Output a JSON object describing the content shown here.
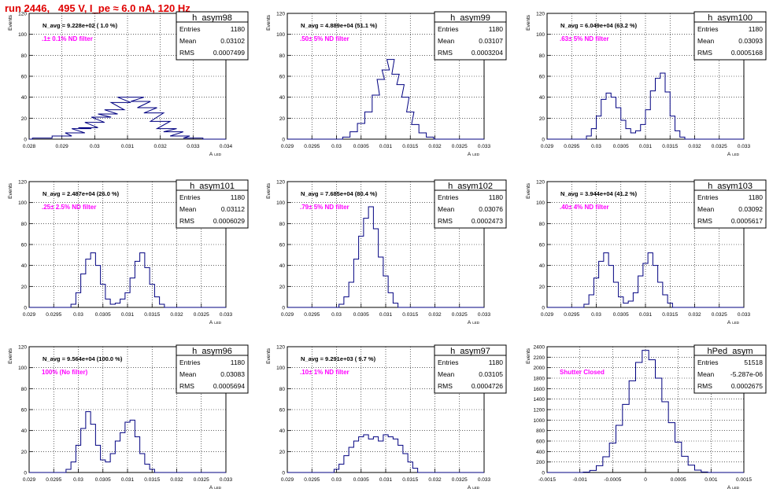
{
  "page": {
    "title": "run 2446,   495 V, I_pe ≈ 6.0 nA, 120 Hz",
    "colors": {
      "hist": "#000080",
      "annotation": "#ff00ff",
      "title": "#e00000",
      "grid": "#000000"
    }
  },
  "chart_data": [
    {
      "type": "histogram",
      "name": "h_asym98",
      "stats": {
        "entries": "1180",
        "mean": "0.03102",
        "rms": "0.0007499"
      },
      "nlabel": "N_avg = 9.228e+02 ( 1.0 %)",
      "filter": ".1± 0.1% ND filter",
      "ylabel": "Events",
      "xlabel": "A",
      "xsub": "LED",
      "xlim": [
        0.028,
        0.034
      ],
      "ylim": [
        0,
        120
      ],
      "xticks": [
        0.028,
        0.029,
        0.03,
        0.031,
        0.032,
        0.033,
        0.034
      ],
      "xticklabels": [
        "0.028",
        "0.029",
        "0.03",
        "0.031",
        "0.032",
        "0.033",
        "0.034"
      ],
      "yticks": [
        0,
        20,
        40,
        60,
        80,
        100,
        120
      ],
      "yticklabels": [
        "0",
        "20",
        "40",
        "60",
        "80",
        "100",
        "120"
      ],
      "bins": [
        [
          0.0284,
          1
        ],
        [
          0.029,
          3
        ],
        [
          0.0294,
          6
        ],
        [
          0.0296,
          10
        ],
        [
          0.0298,
          11
        ],
        [
          0.03,
          16
        ],
        [
          0.0302,
          21
        ],
        [
          0.0304,
          24
        ],
        [
          0.0306,
          28
        ],
        [
          0.0308,
          35
        ],
        [
          0.031,
          40
        ],
        [
          0.0312,
          40
        ],
        [
          0.0314,
          36
        ],
        [
          0.0316,
          30
        ],
        [
          0.0318,
          25
        ],
        [
          0.032,
          17
        ],
        [
          0.0322,
          10
        ],
        [
          0.0324,
          7
        ],
        [
          0.0326,
          3
        ],
        [
          0.033,
          1
        ]
      ]
    },
    {
      "type": "histogram",
      "name": "h_asym99",
      "stats": {
        "entries": "1180",
        "mean": "0.03107",
        "rms": "0.0003204"
      },
      "nlabel": "N_avg = 4.889e+04 (51.1 %)",
      "filter": ".50± 5% ND filter",
      "ylabel": "Events",
      "xlabel": "A",
      "xsub": "LED",
      "xlim": [
        0.029,
        0.033
      ],
      "ylim": [
        0,
        120
      ],
      "xticks": [
        0.029,
        0.0295,
        0.03,
        0.0305,
        0.031,
        0.0315,
        0.032,
        0.0325,
        0.033
      ],
      "xticklabels": [
        "0.029",
        "0.0295",
        "0.03",
        "0.0305",
        "0.031",
        "0.0315",
        "0.032",
        "0.0325",
        "0.033"
      ],
      "yticks": [
        0,
        20,
        40,
        60,
        80,
        100,
        120
      ],
      "yticklabels": [
        "0",
        "20",
        "40",
        "60",
        "80",
        "100",
        "120"
      ],
      "bins": [
        [
          0.0302,
          2
        ],
        [
          0.03035,
          7
        ],
        [
          0.0305,
          15
        ],
        [
          0.03065,
          26
        ],
        [
          0.0308,
          42
        ],
        [
          0.0309,
          57
        ],
        [
          0.031,
          66
        ],
        [
          0.0311,
          76
        ],
        [
          0.0312,
          62
        ],
        [
          0.0313,
          52
        ],
        [
          0.0314,
          40
        ],
        [
          0.0315,
          26
        ],
        [
          0.0316,
          14
        ],
        [
          0.03175,
          6
        ],
        [
          0.0319,
          2
        ]
      ]
    },
    {
      "type": "histogram",
      "name": "h_asym100",
      "stats": {
        "entries": "1180",
        "mean": "0.03093",
        "rms": "0.0005168"
      },
      "nlabel": "N_avg = 6.049e+04 (63.2 %)",
      "filter": ".63± 5% ND filter",
      "ylabel": "Events",
      "xlabel": "A",
      "xsub": "LED",
      "xlim": [
        0.029,
        0.033
      ],
      "ylim": [
        0,
        120
      ],
      "xticks": [
        0.029,
        0.0295,
        0.03,
        0.0305,
        0.031,
        0.0315,
        0.032,
        0.0325,
        0.033
      ],
      "xticklabels": [
        "0.029",
        "0.0295",
        "0.03",
        "0.0305",
        "0.031",
        "0.0315",
        "0.032",
        "0.0325",
        "0.033"
      ],
      "yticks": [
        0,
        20,
        40,
        60,
        80,
        100,
        120
      ],
      "yticklabels": [
        "0",
        "20",
        "40",
        "60",
        "80",
        "100",
        "120"
      ],
      "bins": [
        [
          0.02985,
          3
        ],
        [
          0.02995,
          10
        ],
        [
          0.03005,
          22
        ],
        [
          0.03015,
          38
        ],
        [
          0.03025,
          44
        ],
        [
          0.03035,
          40
        ],
        [
          0.03045,
          30
        ],
        [
          0.03055,
          18
        ],
        [
          0.03065,
          10
        ],
        [
          0.03075,
          6
        ],
        [
          0.03085,
          8
        ],
        [
          0.03095,
          14
        ],
        [
          0.03105,
          28
        ],
        [
          0.03115,
          46
        ],
        [
          0.03125,
          58
        ],
        [
          0.03135,
          63
        ],
        [
          0.03145,
          45
        ],
        [
          0.03155,
          22
        ],
        [
          0.03165,
          8
        ],
        [
          0.03175,
          2
        ]
      ]
    },
    {
      "type": "histogram",
      "name": "h_asym101",
      "stats": {
        "entries": "1180",
        "mean": "0.03112",
        "rms": "0.0006029"
      },
      "nlabel": "N_avg = 2.487e+04 (26.0 %)",
      "filter": ".25± 2.5% ND filter",
      "ylabel": "Events",
      "xlabel": "A",
      "xsub": "LED",
      "xlim": [
        0.029,
        0.033
      ],
      "ylim": [
        0,
        120
      ],
      "xticks": [
        0.029,
        0.0295,
        0.03,
        0.0305,
        0.031,
        0.0315,
        0.032,
        0.0325,
        0.033
      ],
      "xticklabels": [
        "0.029",
        "0.0295",
        "0.03",
        "0.0305",
        "0.031",
        "0.0315",
        "0.032",
        "0.0325",
        "0.033"
      ],
      "yticks": [
        0,
        20,
        40,
        60,
        80,
        100,
        120
      ],
      "yticklabels": [
        "0",
        "20",
        "40",
        "60",
        "80",
        "100",
        "120"
      ],
      "bins": [
        [
          0.0299,
          3
        ],
        [
          0.03,
          14
        ],
        [
          0.0301,
          32
        ],
        [
          0.0302,
          46
        ],
        [
          0.0303,
          52
        ],
        [
          0.0304,
          40
        ],
        [
          0.0305,
          22
        ],
        [
          0.0306,
          8
        ],
        [
          0.0307,
          3
        ],
        [
          0.0308,
          4
        ],
        [
          0.0309,
          8
        ],
        [
          0.031,
          14
        ],
        [
          0.0311,
          28
        ],
        [
          0.0312,
          44
        ],
        [
          0.0313,
          52
        ],
        [
          0.0314,
          38
        ],
        [
          0.0315,
          22
        ],
        [
          0.0316,
          10
        ],
        [
          0.0317,
          3
        ]
      ]
    },
    {
      "type": "histogram",
      "name": "h_asym102",
      "stats": {
        "entries": "1180",
        "mean": "0.03076",
        "rms": "0.0002473"
      },
      "nlabel": "N_avg = 7.685e+04 (80.4 %)",
      "filter": ".79± 5% ND filter",
      "ylabel": "Events",
      "xlabel": "A",
      "xsub": "LED",
      "xlim": [
        0.029,
        0.033
      ],
      "ylim": [
        0,
        120
      ],
      "xticks": [
        0.029,
        0.0295,
        0.03,
        0.0305,
        0.031,
        0.0315,
        0.032,
        0.0325,
        0.033
      ],
      "xticklabels": [
        "0.029",
        "0.0295",
        "0.03",
        "0.0305",
        "0.031",
        "0.0315",
        "0.032",
        "0.0325",
        "0.033"
      ],
      "yticks": [
        0,
        20,
        40,
        60,
        80,
        100,
        120
      ],
      "yticklabels": [
        "0",
        "20",
        "40",
        "60",
        "80",
        "100",
        "120"
      ],
      "bins": [
        [
          0.0301,
          3
        ],
        [
          0.0302,
          10
        ],
        [
          0.0303,
          24
        ],
        [
          0.0304,
          46
        ],
        [
          0.0305,
          68
        ],
        [
          0.0306,
          85
        ],
        [
          0.0307,
          96
        ],
        [
          0.0308,
          75
        ],
        [
          0.0309,
          48
        ],
        [
          0.031,
          30
        ],
        [
          0.0311,
          14
        ],
        [
          0.0312,
          4
        ]
      ]
    },
    {
      "type": "histogram",
      "name": "h_asym103",
      "stats": {
        "entries": "1180",
        "mean": "0.03092",
        "rms": "0.0005617"
      },
      "nlabel": "N_avg = 3.944e+04 (41.2 %)",
      "filter": ".40± 4% ND filter",
      "ylabel": "Events",
      "xlabel": "A",
      "xsub": "LED",
      "xlim": [
        0.029,
        0.033
      ],
      "ylim": [
        0,
        120
      ],
      "xticks": [
        0.029,
        0.0295,
        0.03,
        0.0305,
        0.031,
        0.0315,
        0.032,
        0.0325,
        0.033
      ],
      "xticklabels": [
        "0.029",
        "0.0295",
        "0.03",
        "0.0305",
        "0.031",
        "0.0315",
        "0.032",
        "0.0325",
        "0.033"
      ],
      "yticks": [
        0,
        20,
        40,
        60,
        80,
        100,
        120
      ],
      "yticklabels": [
        "0",
        "20",
        "40",
        "60",
        "80",
        "100",
        "120"
      ],
      "bins": [
        [
          0.0298,
          3
        ],
        [
          0.0299,
          12
        ],
        [
          0.03,
          28
        ],
        [
          0.0301,
          44
        ],
        [
          0.0302,
          52
        ],
        [
          0.0303,
          40
        ],
        [
          0.0304,
          24
        ],
        [
          0.0305,
          10
        ],
        [
          0.0306,
          4
        ],
        [
          0.0307,
          6
        ],
        [
          0.0308,
          14
        ],
        [
          0.0309,
          30
        ],
        [
          0.031,
          42
        ],
        [
          0.0311,
          52
        ],
        [
          0.0312,
          40
        ],
        [
          0.0313,
          24
        ],
        [
          0.0314,
          12
        ],
        [
          0.0315,
          4
        ]
      ]
    },
    {
      "type": "histogram",
      "name": "h_asym96",
      "stats": {
        "entries": "1180",
        "mean": "0.03083",
        "rms": "0.0005694"
      },
      "nlabel": "N_avg = 9.564e+04 (100.0 %)",
      "filter": "100% (No filter)",
      "ylabel": "Events",
      "xlabel": "A",
      "xsub": "LED",
      "xlim": [
        0.029,
        0.033
      ],
      "ylim": [
        0,
        120
      ],
      "xticks": [
        0.029,
        0.0295,
        0.03,
        0.0305,
        0.031,
        0.0315,
        0.032,
        0.0325,
        0.033
      ],
      "xticklabels": [
        "0.029",
        "0.0295",
        "0.03",
        "0.0305",
        "0.031",
        "0.0315",
        "0.032",
        "0.0325",
        "0.033"
      ],
      "yticks": [
        0,
        20,
        40,
        60,
        80,
        100,
        120
      ],
      "yticklabels": [
        "0",
        "20",
        "40",
        "60",
        "80",
        "100",
        "120"
      ],
      "bins": [
        [
          0.0298,
          3
        ],
        [
          0.0299,
          10
        ],
        [
          0.03,
          26
        ],
        [
          0.0301,
          42
        ],
        [
          0.0302,
          58
        ],
        [
          0.0303,
          46
        ],
        [
          0.0304,
          26
        ],
        [
          0.0305,
          12
        ],
        [
          0.0306,
          10
        ],
        [
          0.0307,
          18
        ],
        [
          0.0308,
          30
        ],
        [
          0.0309,
          38
        ],
        [
          0.031,
          48
        ],
        [
          0.0311,
          50
        ],
        [
          0.0312,
          34
        ],
        [
          0.0313,
          18
        ],
        [
          0.0314,
          8
        ],
        [
          0.0315,
          3
        ]
      ]
    },
    {
      "type": "histogram",
      "name": "h_asym97",
      "stats": {
        "entries": "1180",
        "mean": "0.03105",
        "rms": "0.0004726"
      },
      "nlabel": "N_avg = 9.291e+03 ( 9.7 %)",
      "filter": ".10± 1% ND filter",
      "ylabel": "Events",
      "xlabel": "A",
      "xsub": "LED",
      "xlim": [
        0.029,
        0.033
      ],
      "ylim": [
        0,
        120
      ],
      "xticks": [
        0.029,
        0.0295,
        0.03,
        0.0305,
        0.031,
        0.0315,
        0.032,
        0.0325,
        0.033
      ],
      "xticklabels": [
        "0.029",
        "0.0295",
        "0.03",
        "0.0305",
        "0.031",
        "0.0315",
        "0.032",
        "0.0325",
        "0.033"
      ],
      "yticks": [
        0,
        20,
        40,
        60,
        80,
        100,
        120
      ],
      "yticklabels": [
        "0",
        "20",
        "40",
        "60",
        "80",
        "100",
        "120"
      ],
      "bins": [
        [
          0.03,
          3
        ],
        [
          0.0301,
          8
        ],
        [
          0.0302,
          16
        ],
        [
          0.0303,
          24
        ],
        [
          0.0304,
          30
        ],
        [
          0.0305,
          34
        ],
        [
          0.0306,
          36
        ],
        [
          0.0307,
          32
        ],
        [
          0.0308,
          34
        ],
        [
          0.0309,
          30
        ],
        [
          0.031,
          36
        ],
        [
          0.0311,
          34
        ],
        [
          0.0312,
          32
        ],
        [
          0.0313,
          26
        ],
        [
          0.0314,
          18
        ],
        [
          0.0315,
          10
        ],
        [
          0.0316,
          4
        ]
      ]
    },
    {
      "type": "histogram",
      "name": "hPed_asym",
      "stats": {
        "entries": "51518",
        "mean": "-5.287e-06",
        "rms": "0.0002675"
      },
      "nlabel": "",
      "filter": "Shutter Closed",
      "ylabel": "Events",
      "xlabel": "A",
      "xsub": "LED",
      "xlim": [
        -0.0015,
        0.0015
      ],
      "ylim": [
        0,
        2400
      ],
      "xticks": [
        -0.0015,
        -0.001,
        -0.0005,
        0,
        0.0005,
        0.001,
        0.0015
      ],
      "xticklabels": [
        "-0.0015",
        "-0.001",
        "-0.0005",
        "0",
        "0.0005",
        "0.001",
        "0.0015"
      ],
      "yticks": [
        0,
        200,
        400,
        600,
        800,
        1000,
        1200,
        1400,
        1600,
        1800,
        2000,
        2200,
        2400
      ],
      "yticklabels": [
        "0",
        "200",
        "400",
        "600",
        "800",
        "1000",
        "1200",
        "1400",
        "1600",
        "1800",
        "2000",
        "2200",
        "2400"
      ],
      "bins": [
        [
          -0.0009,
          8
        ],
        [
          -0.0008,
          40
        ],
        [
          -0.0007,
          130
        ],
        [
          -0.0006,
          300
        ],
        [
          -0.0005,
          560
        ],
        [
          -0.0004,
          900
        ],
        [
          -0.0003,
          1300
        ],
        [
          -0.0002,
          1750
        ],
        [
          -0.0001,
          2100
        ],
        [
          0.0,
          2330
        ],
        [
          0.0001,
          2150
        ],
        [
          0.0002,
          1800
        ],
        [
          0.0003,
          1350
        ],
        [
          0.0004,
          950
        ],
        [
          0.0005,
          580
        ],
        [
          0.0006,
          310
        ],
        [
          0.0007,
          140
        ],
        [
          0.0008,
          45
        ],
        [
          0.0009,
          10
        ]
      ]
    }
  ]
}
